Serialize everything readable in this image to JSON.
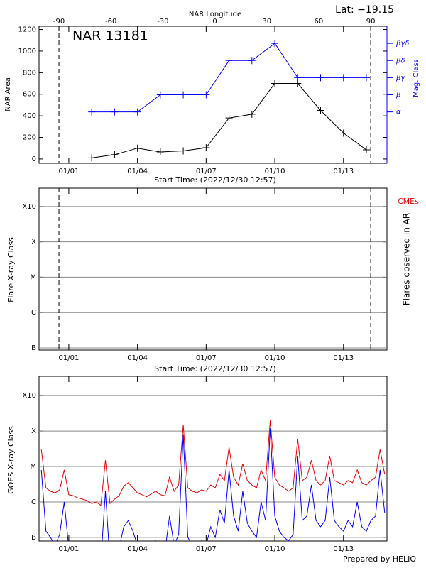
{
  "footer": "Prepared by HELIO",
  "chart_data": [
    {
      "type": "line",
      "annotation": "Lat: −19.15",
      "label": "NAR 13181",
      "x_label": "Start Time: (2022/12/30 12:57)",
      "y_label": "NAR Area",
      "y2_label": "Mag. Class",
      "x2_label": "NAR Longitude",
      "x": [
        2,
        3,
        4,
        5,
        6,
        7,
        8,
        9,
        10,
        11,
        12,
        13,
        14
      ],
      "xlim": [
        -0.3,
        14.9
      ],
      "xticks": [
        {
          "value": 1,
          "label": "01/01"
        },
        {
          "value": 4,
          "label": "01/04"
        },
        {
          "value": 7,
          "label": "01/07"
        },
        {
          "value": 10,
          "label": "01/10"
        },
        {
          "value": 13,
          "label": "01/13"
        }
      ],
      "x2lim": [
        -101.5,
        99.4
      ],
      "x2ticks": [
        -90,
        -60,
        -30,
        0,
        30,
        60,
        90
      ],
      "ylim": [
        -40,
        1230
      ],
      "yticks": [
        0,
        200,
        400,
        600,
        800,
        1000,
        1200
      ],
      "y2lim": [
        0,
        8
      ],
      "y2ticks": [
        {
          "value": 3,
          "label": "α"
        },
        {
          "value": 4,
          "label": "β"
        },
        {
          "value": 5,
          "label": "βγ"
        },
        {
          "value": 6,
          "label": "βδ"
        },
        {
          "value": 7,
          "label": "βγδ"
        }
      ],
      "series": [
        {
          "color": "#000000",
          "values": [
            10,
            40,
            100,
            65,
            75,
            105,
            380,
            415,
            700,
            700,
            450,
            240,
            85
          ]
        },
        {
          "color": "#0000ff",
          "axis": "y2",
          "values": [
            3,
            3,
            3,
            4,
            4,
            4,
            6,
            6,
            7,
            5,
            5,
            5,
            5
          ]
        }
      ]
    },
    {
      "type": "scatter",
      "annotation": "CMEs",
      "x_label": "Start Time: (2022/12/30 12:57)",
      "y_label": "Flare X-ray Class",
      "y2_label": "Flares observed in AR",
      "xlim": [
        -0.3,
        14.9
      ],
      "xticks": [
        {
          "value": 1,
          "label": "01/01"
        },
        {
          "value": 4,
          "label": "01/04"
        },
        {
          "value": 7,
          "label": "01/07"
        },
        {
          "value": 10,
          "label": "01/10"
        },
        {
          "value": 13,
          "label": "01/13"
        }
      ],
      "log_scale": true,
      "grid": true,
      "ylim": [
        8.7e-08,
        0.0033
      ],
      "yticks": [
        {
          "value": 1e-07,
          "label": "B"
        },
        {
          "value": 1e-06,
          "label": "C"
        },
        {
          "value": 1e-05,
          "label": "M"
        },
        {
          "value": 0.0001,
          "label": "X"
        },
        {
          "value": 0.001,
          "label": "X10"
        }
      ]
    },
    {
      "type": "line",
      "y_label": "GOES X-ray Class",
      "xlim": [
        -0.3,
        14.9
      ],
      "xticks": [
        {
          "value": 1,
          "label": "01/01"
        },
        {
          "value": 4,
          "label": "01/04"
        },
        {
          "value": 7,
          "label": "01/07"
        },
        {
          "value": 10,
          "label": "01/10"
        },
        {
          "value": 13,
          "label": "01/13"
        }
      ],
      "log_scale": true,
      "grid": true,
      "ylim": [
        7.9e-08,
        0.0035
      ],
      "yticks": [
        {
          "value": 1e-07,
          "label": "B"
        },
        {
          "value": 1e-06,
          "label": "C"
        },
        {
          "value": 1e-05,
          "label": "M"
        },
        {
          "value": 0.0001,
          "label": "X"
        },
        {
          "value": 0.001,
          "label": "X10"
        }
      ],
      "x": [
        -0.2,
        0,
        0.2,
        0.4,
        0.6,
        0.8,
        1,
        1.2,
        1.4,
        1.6,
        1.8,
        2,
        2.2,
        2.4,
        2.6,
        2.8,
        3,
        3.2,
        3.4,
        3.6,
        3.8,
        4,
        4.2,
        4.4,
        4.6,
        4.8,
        5,
        5.2,
        5.4,
        5.6,
        5.8,
        6,
        6.2,
        6.4,
        6.6,
        6.8,
        7,
        7.2,
        7.4,
        7.6,
        7.8,
        8,
        8.2,
        8.4,
        8.6,
        8.8,
        9,
        9.2,
        9.4,
        9.6,
        9.8,
        10,
        10.2,
        10.4,
        10.6,
        10.8,
        11,
        11.2,
        11.4,
        11.6,
        11.8,
        12,
        12.2,
        12.4,
        12.6,
        12.8,
        13,
        13.2,
        13.4,
        13.6,
        13.8,
        14,
        14.2,
        14.4,
        14.6,
        14.8
      ],
      "series": [
        {
          "color": "#ee0000",
          "values": [
            3e-05,
            2.5e-06,
            2e-06,
            1.8e-06,
            2.2e-06,
            8e-06,
            1.6e-06,
            1.5e-06,
            1.3e-06,
            1.2e-06,
            1.1e-06,
            9e-07,
            1e-06,
            8e-07,
            1.5e-05,
            9e-07,
            1.2e-06,
            1.5e-06,
            2.8e-06,
            3.5e-06,
            2.5e-06,
            1.8e-06,
            1.6e-06,
            1.4e-06,
            1.7e-06,
            2e-06,
            1.6e-06,
            1.5e-06,
            5e-06,
            2e-06,
            3e-06,
            0.00015,
            2.5e-06,
            2e-06,
            1.8e-06,
            2.2e-06,
            2e-06,
            3e-06,
            2.5e-06,
            6e-06,
            4e-06,
            3.5e-05,
            5e-06,
            3e-06,
            1.2e-05,
            4e-06,
            3e-06,
            2.5e-06,
            8e-06,
            4e-06,
            0.0002,
            5e-06,
            3e-06,
            2.5e-06,
            2e-06,
            2.5e-06,
            6e-05,
            4e-06,
            5e-06,
            1.5e-05,
            4e-06,
            3e-06,
            4e-06,
            2e-05,
            4e-06,
            3.5e-06,
            3e-06,
            4e-06,
            3.5e-06,
            8e-06,
            3.5e-06,
            3e-06,
            4e-06,
            5e-06,
            3e-05,
            6e-06
          ]
        },
        {
          "color": "#0000ff",
          "values": [
            8e-06,
            1.5e-07,
            1e-07,
            6e-08,
            1.2e-07,
            1e-06,
            5e-08,
            4e-08,
            6e-08,
            4e-08,
            3e-08,
            3e-08,
            5e-08,
            2e-08,
            2e-06,
            2e-08,
            3e-08,
            5e-08,
            2e-07,
            3e-07,
            1.5e-07,
            6e-08,
            5e-08,
            4e-08,
            6e-08,
            8e-08,
            5e-08,
            4e-08,
            4e-07,
            6e-08,
            1.2e-07,
            8e-05,
            1e-07,
            6e-08,
            5e-08,
            8e-08,
            6e-08,
            2e-07,
            1e-07,
            6e-07,
            2.5e-07,
            8e-06,
            4e-07,
            1.5e-07,
            2e-06,
            2.5e-07,
            1.5e-07,
            1e-07,
            1e-06,
            3e-07,
            0.00012,
            4e-07,
            1.5e-07,
            1e-07,
            8e-08,
            1.2e-07,
            2e-05,
            3e-07,
            4e-07,
            3e-06,
            3e-07,
            2e-07,
            3e-07,
            5e-06,
            3e-07,
            2e-07,
            1.5e-07,
            3e-07,
            2e-07,
            1e-06,
            2e-07,
            1.5e-07,
            3e-07,
            4e-07,
            8e-06,
            5e-07
          ]
        }
      ]
    }
  ]
}
